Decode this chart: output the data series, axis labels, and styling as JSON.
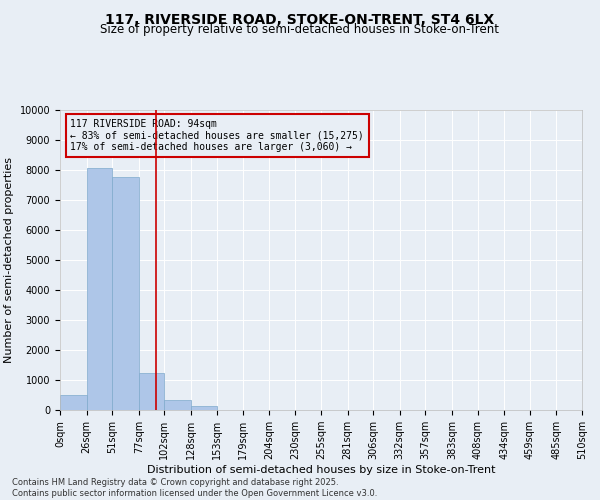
{
  "title_line1": "117, RIVERSIDE ROAD, STOKE-ON-TRENT, ST4 6LX",
  "title_line2": "Size of property relative to semi-detached houses in Stoke-on-Trent",
  "xlabel": "Distribution of semi-detached houses by size in Stoke-on-Trent",
  "ylabel": "Number of semi-detached properties",
  "footnote": "Contains HM Land Registry data © Crown copyright and database right 2025.\nContains public sector information licensed under the Open Government Licence v3.0.",
  "bin_edges": [
    0,
    26,
    51,
    77,
    102,
    128,
    153,
    179,
    204,
    230,
    255,
    281,
    306,
    332,
    357,
    383,
    408,
    434,
    459,
    485,
    510
  ],
  "bar_heights": [
    500,
    8050,
    7750,
    1250,
    350,
    120,
    0,
    0,
    0,
    0,
    0,
    0,
    0,
    0,
    0,
    0,
    0,
    0,
    0,
    0
  ],
  "bar_color": "#aec6e8",
  "bar_edge_color": "#7faacc",
  "property_size": 94,
  "vline_color": "#cc0000",
  "ylim": [
    0,
    10000
  ],
  "yticks": [
    0,
    1000,
    2000,
    3000,
    4000,
    5000,
    6000,
    7000,
    8000,
    9000,
    10000
  ],
  "legend_title": "117 RIVERSIDE ROAD: 94sqm",
  "legend_line1": "← 83% of semi-detached houses are smaller (15,275)",
  "legend_line2": "17% of semi-detached houses are larger (3,060) →",
  "legend_edge_color": "#cc0000",
  "background_color": "#e8eef5",
  "grid_color": "#ffffff",
  "title_fontsize": 10,
  "subtitle_fontsize": 8.5,
  "axis_label_fontsize": 8,
  "tick_fontsize": 7,
  "legend_fontsize": 7,
  "footnote_fontsize": 6
}
